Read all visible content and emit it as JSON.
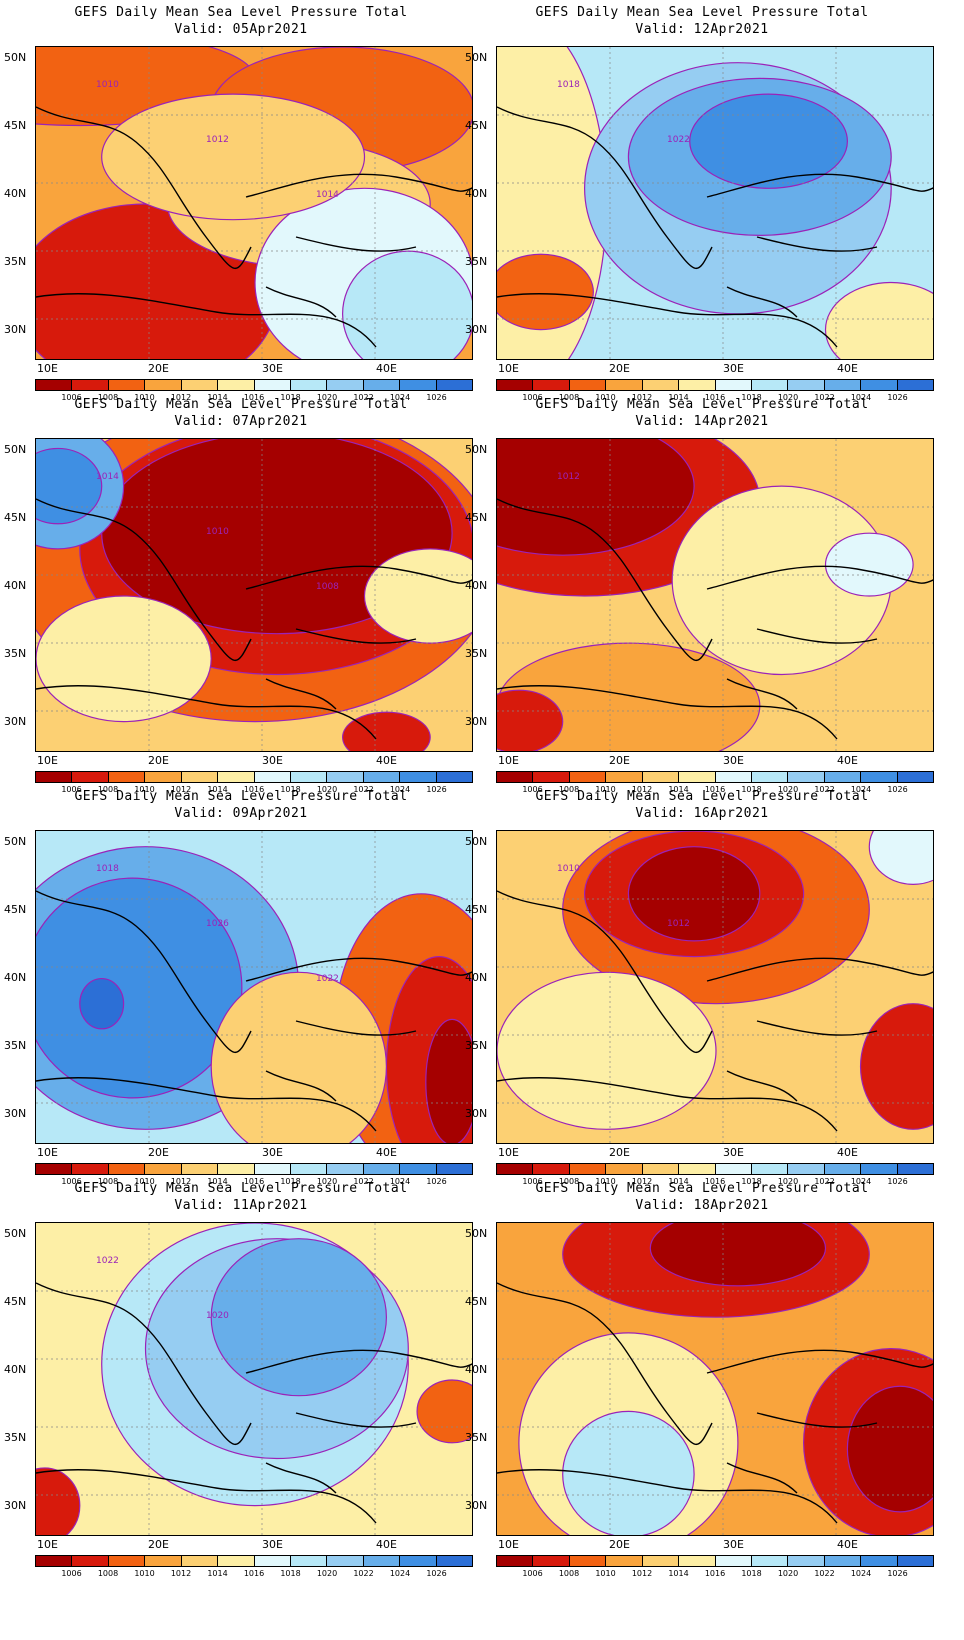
{
  "palette": {
    "colors": [
      "#a50000",
      "#d71a0c",
      "#f26212",
      "#f9a43d",
      "#fcd073",
      "#fdefa6",
      "#e2f8fc",
      "#b7e8f7",
      "#96cdf2",
      "#67aeea",
      "#3f8fe3",
      "#2c6fd6"
    ],
    "contour": "#9b22b8",
    "ticks": [
      "1006",
      "1008",
      "1010",
      "1012",
      "1014",
      "1016",
      "1018",
      "1020",
      "1022",
      "1024",
      "1026"
    ]
  },
  "axes": {
    "lat": [
      "50N",
      "45N",
      "40N",
      "35N",
      "30N"
    ],
    "lon": [
      "10E",
      "20E",
      "30E",
      "40E"
    ]
  },
  "panels": [
    {
      "id": "p05",
      "title": "GEFS Daily Mean Sea Level Pressure Total",
      "valid": "Valid: 05Apr2021",
      "labels": [
        "1010",
        "1012",
        "1014"
      ],
      "bg": 3,
      "blobs": [
        [
          0.1,
          0.1,
          0.4,
          0.15,
          2
        ],
        [
          0.7,
          0.2,
          0.3,
          0.2,
          2
        ],
        [
          0.2,
          0.85,
          0.2,
          0.2,
          0
        ],
        [
          0.25,
          0.8,
          0.3,
          0.3,
          1
        ],
        [
          0.6,
          0.5,
          0.3,
          0.2,
          4
        ],
        [
          0.75,
          0.75,
          0.25,
          0.3,
          6
        ],
        [
          0.85,
          0.85,
          0.15,
          0.2,
          7
        ],
        [
          0.45,
          0.35,
          0.3,
          0.2,
          4
        ]
      ]
    },
    {
      "id": "p12",
      "title": "GEFS Daily Mean Sea Level Pressure Total",
      "valid": "Valid: 12Apr2021",
      "labels": [
        "1018",
        "1022"
      ],
      "bg": 7,
      "blobs": [
        [
          0.05,
          0.5,
          0.2,
          0.6,
          5
        ],
        [
          0.1,
          0.78,
          0.12,
          0.12,
          2
        ],
        [
          0.55,
          0.45,
          0.35,
          0.4,
          8
        ],
        [
          0.6,
          0.35,
          0.3,
          0.25,
          9
        ],
        [
          0.62,
          0.3,
          0.18,
          0.15,
          10
        ],
        [
          0.9,
          0.9,
          0.15,
          0.15,
          5
        ]
      ]
    },
    {
      "id": "p07",
      "title": "GEFS Daily Mean Sea Level Pressure Total",
      "valid": "Valid: 07Apr2021",
      "labels": [
        "1014",
        "1010",
        "1008"
      ],
      "bg": 4,
      "blobs": [
        [
          0.5,
          0.4,
          0.55,
          0.5,
          2
        ],
        [
          0.55,
          0.35,
          0.45,
          0.4,
          1
        ],
        [
          0.55,
          0.3,
          0.4,
          0.32,
          0
        ],
        [
          0.05,
          0.15,
          0.15,
          0.2,
          9
        ],
        [
          0.05,
          0.15,
          0.1,
          0.12,
          10
        ],
        [
          0.2,
          0.7,
          0.2,
          0.2,
          5
        ],
        [
          0.9,
          0.5,
          0.15,
          0.15,
          5
        ],
        [
          0.8,
          0.95,
          0.1,
          0.08,
          1
        ]
      ]
    },
    {
      "id": "p14",
      "title": "GEFS Daily Mean Sea Level Pressure Total",
      "valid": "Valid: 14Apr2021",
      "labels": [
        "1012"
      ],
      "bg": 4,
      "blobs": [
        [
          0.2,
          0.2,
          0.4,
          0.3,
          1
        ],
        [
          0.15,
          0.15,
          0.3,
          0.22,
          0
        ],
        [
          0.65,
          0.45,
          0.25,
          0.3,
          5
        ],
        [
          0.85,
          0.4,
          0.1,
          0.1,
          6
        ],
        [
          0.3,
          0.85,
          0.3,
          0.2,
          3
        ],
        [
          0.05,
          0.9,
          0.1,
          0.1,
          1
        ]
      ]
    },
    {
      "id": "p09",
      "title": "GEFS Daily Mean Sea Level Pressure Total",
      "valid": "Valid: 09Apr2021",
      "labels": [
        "1018",
        "1026",
        "1022"
      ],
      "bg": 7,
      "blobs": [
        [
          0.25,
          0.5,
          0.35,
          0.45,
          9
        ],
        [
          0.22,
          0.5,
          0.25,
          0.35,
          10
        ],
        [
          0.15,
          0.55,
          0.05,
          0.08,
          11
        ],
        [
          0.88,
          0.65,
          0.2,
          0.45,
          2
        ],
        [
          0.92,
          0.75,
          0.12,
          0.35,
          1
        ],
        [
          0.95,
          0.8,
          0.06,
          0.2,
          0
        ],
        [
          0.6,
          0.75,
          0.2,
          0.3,
          4
        ]
      ]
    },
    {
      "id": "p16",
      "title": "GEFS Daily Mean Sea Level Pressure Total",
      "valid": "Valid: 16Apr2021",
      "labels": [
        "1010",
        "1012"
      ],
      "bg": 4,
      "blobs": [
        [
          0.5,
          0.25,
          0.35,
          0.3,
          2
        ],
        [
          0.45,
          0.2,
          0.25,
          0.2,
          1
        ],
        [
          0.45,
          0.2,
          0.15,
          0.15,
          0
        ],
        [
          0.25,
          0.7,
          0.25,
          0.25,
          5
        ],
        [
          0.95,
          0.75,
          0.12,
          0.2,
          1
        ],
        [
          0.95,
          0.05,
          0.1,
          0.12,
          6
        ]
      ]
    },
    {
      "id": "p11",
      "title": "GEFS Daily Mean Sea Level Pressure Total",
      "valid": "Valid: 11Apr2021",
      "labels": [
        "1022",
        "1020"
      ],
      "bg": 5,
      "blobs": [
        [
          0.5,
          0.45,
          0.35,
          0.45,
          7
        ],
        [
          0.55,
          0.4,
          0.3,
          0.35,
          8
        ],
        [
          0.6,
          0.3,
          0.2,
          0.25,
          9
        ],
        [
          0.02,
          0.9,
          0.08,
          0.12,
          1
        ],
        [
          0.95,
          0.6,
          0.08,
          0.1,
          2
        ]
      ]
    },
    {
      "id": "p18",
      "title": "GEFS Daily Mean Sea Level Pressure Total",
      "valid": "Valid: 18Apr2021",
      "labels": [],
      "bg": 3,
      "blobs": [
        [
          0.5,
          0.1,
          0.35,
          0.2,
          1
        ],
        [
          0.55,
          0.08,
          0.2,
          0.12,
          0
        ],
        [
          0.3,
          0.7,
          0.25,
          0.35,
          5
        ],
        [
          0.3,
          0.8,
          0.15,
          0.2,
          7
        ],
        [
          0.9,
          0.7,
          0.2,
          0.3,
          1
        ],
        [
          0.92,
          0.72,
          0.12,
          0.2,
          0
        ]
      ]
    }
  ]
}
